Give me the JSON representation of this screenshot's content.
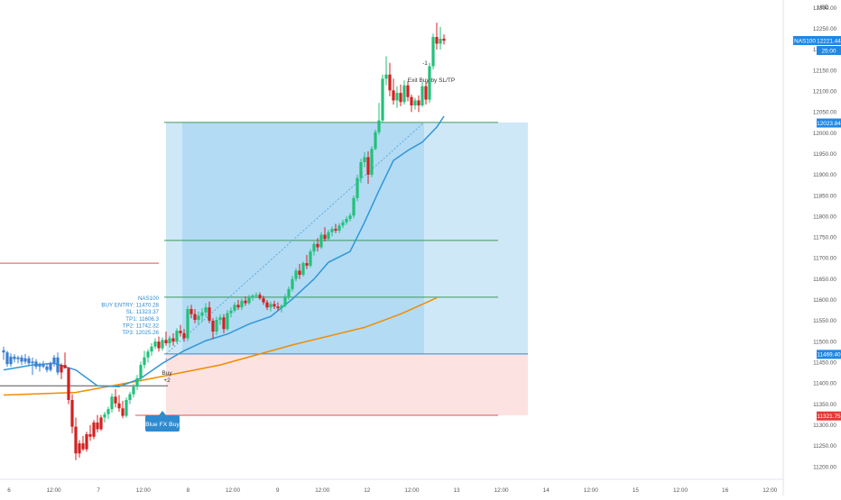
{
  "chart_data": {
    "type": "candlestick",
    "symbol": "NAS100",
    "currency": "USD",
    "ylim": [
      11170,
      12310
    ],
    "x_ticks": [
      "6",
      "12:00",
      "7",
      "12:00",
      "8",
      "12:00",
      "9",
      "12:00",
      "12",
      "12:00",
      "13",
      "12:00",
      "14",
      "12:00",
      "15",
      "12:00",
      "16",
      "12:00"
    ],
    "y_ticks": [
      "12300.00",
      "12250.00",
      "12200.00",
      "12150.00",
      "12100.00",
      "12050.00",
      "12000.00",
      "11950.00",
      "11900.00",
      "11850.00",
      "11800.00",
      "11750.00",
      "11700.00",
      "11650.00",
      "11600.00",
      "11550.00",
      "11500.00",
      "11450.00",
      "11400.00",
      "11350.00",
      "11300.00",
      "11250.00",
      "11200.00"
    ],
    "price_labels": {
      "symbol_tag": "NAS100",
      "last_price": "12221.44",
      "countdown": "25:00",
      "tp3_price": "12023.84",
      "entry_price": "11469.40",
      "sl_price": "11321.75"
    },
    "levels": {
      "entry": 11470.28,
      "sl": 11323.37,
      "tp1": 11606.3,
      "tp2": 11742.32,
      "tp3": 12025.26,
      "prior_resistance": 11688
    },
    "candles": [
      {
        "o": 11479,
        "h": 11488,
        "l": 11456,
        "c": 11474
      },
      {
        "o": 11474,
        "h": 11478,
        "l": 11440,
        "c": 11446
      },
      {
        "o": 11446,
        "h": 11472,
        "l": 11440,
        "c": 11464
      },
      {
        "o": 11464,
        "h": 11470,
        "l": 11450,
        "c": 11458
      },
      {
        "o": 11458,
        "h": 11466,
        "l": 11448,
        "c": 11462
      },
      {
        "o": 11462,
        "h": 11468,
        "l": 11444,
        "c": 11452
      },
      {
        "o": 11452,
        "h": 11470,
        "l": 11446,
        "c": 11460
      },
      {
        "o": 11460,
        "h": 11466,
        "l": 11444,
        "c": 11448
      },
      {
        "o": 11448,
        "h": 11462,
        "l": 11420,
        "c": 11452
      },
      {
        "o": 11452,
        "h": 11458,
        "l": 11434,
        "c": 11440
      },
      {
        "o": 11440,
        "h": 11450,
        "l": 11428,
        "c": 11444
      },
      {
        "o": 11444,
        "h": 11454,
        "l": 11436,
        "c": 11440
      },
      {
        "o": 11440,
        "h": 11446,
        "l": 11426,
        "c": 11432
      },
      {
        "o": 11432,
        "h": 11452,
        "l": 11428,
        "c": 11449
      },
      {
        "o": 11449,
        "h": 11468,
        "l": 11440,
        "c": 11462
      },
      {
        "o": 11462,
        "h": 11474,
        "l": 11420,
        "c": 11426
      },
      {
        "o": 11426,
        "h": 11448,
        "l": 11410,
        "c": 11444
      },
      {
        "o": 11444,
        "h": 11474,
        "l": 11436,
        "c": 11436
      },
      {
        "o": 11436,
        "h": 11438,
        "l": 11350,
        "c": 11360
      },
      {
        "o": 11360,
        "h": 11374,
        "l": 11280,
        "c": 11296
      },
      {
        "o": 11296,
        "h": 11318,
        "l": 11216,
        "c": 11232
      },
      {
        "o": 11232,
        "h": 11264,
        "l": 11222,
        "c": 11256
      },
      {
        "o": 11256,
        "h": 11274,
        "l": 11238,
        "c": 11242
      },
      {
        "o": 11242,
        "h": 11284,
        "l": 11236,
        "c": 11278
      },
      {
        "o": 11278,
        "h": 11300,
        "l": 11262,
        "c": 11272
      },
      {
        "o": 11272,
        "h": 11312,
        "l": 11266,
        "c": 11306
      },
      {
        "o": 11306,
        "h": 11324,
        "l": 11282,
        "c": 11290
      },
      {
        "o": 11290,
        "h": 11324,
        "l": 11286,
        "c": 11318
      },
      {
        "o": 11318,
        "h": 11332,
        "l": 11306,
        "c": 11326
      },
      {
        "o": 11326,
        "h": 11344,
        "l": 11314,
        "c": 11338
      },
      {
        "o": 11338,
        "h": 11376,
        "l": 11330,
        "c": 11368
      },
      {
        "o": 11368,
        "h": 11386,
        "l": 11342,
        "c": 11352
      },
      {
        "o": 11352,
        "h": 11372,
        "l": 11332,
        "c": 11340
      },
      {
        "o": 11340,
        "h": 11358,
        "l": 11316,
        "c": 11322
      },
      {
        "o": 11322,
        "h": 11366,
        "l": 11318,
        "c": 11360
      },
      {
        "o": 11360,
        "h": 11380,
        "l": 11350,
        "c": 11374
      },
      {
        "o": 11374,
        "h": 11398,
        "l": 11366,
        "c": 11392
      },
      {
        "o": 11392,
        "h": 11420,
        "l": 11384,
        "c": 11412
      },
      {
        "o": 11412,
        "h": 11452,
        "l": 11404,
        "c": 11444
      },
      {
        "o": 11444,
        "h": 11478,
        "l": 11436,
        "c": 11462
      },
      {
        "o": 11462,
        "h": 11482,
        "l": 11450,
        "c": 11476
      },
      {
        "o": 11476,
        "h": 11496,
        "l": 11466,
        "c": 11488
      },
      {
        "o": 11488,
        "h": 11508,
        "l": 11482,
        "c": 11500
      },
      {
        "o": 11500,
        "h": 11512,
        "l": 11476,
        "c": 11484
      },
      {
        "o": 11484,
        "h": 11510,
        "l": 11478,
        "c": 11504
      },
      {
        "o": 11504,
        "h": 11524,
        "l": 11490,
        "c": 11496
      },
      {
        "o": 11496,
        "h": 11514,
        "l": 11486,
        "c": 11508
      },
      {
        "o": 11508,
        "h": 11520,
        "l": 11490,
        "c": 11500
      },
      {
        "o": 11500,
        "h": 11532,
        "l": 11496,
        "c": 11526
      },
      {
        "o": 11526,
        "h": 11540,
        "l": 11512,
        "c": 11520
      },
      {
        "o": 11520,
        "h": 11530,
        "l": 11500,
        "c": 11508
      },
      {
        "o": 11508,
        "h": 11586,
        "l": 11502,
        "c": 11578
      },
      {
        "o": 11578,
        "h": 11588,
        "l": 11556,
        "c": 11566
      },
      {
        "o": 11566,
        "h": 11578,
        "l": 11544,
        "c": 11552
      },
      {
        "o": 11552,
        "h": 11572,
        "l": 11540,
        "c": 11562
      },
      {
        "o": 11562,
        "h": 11580,
        "l": 11548,
        "c": 11570
      },
      {
        "o": 11570,
        "h": 11592,
        "l": 11560,
        "c": 11582
      },
      {
        "o": 11582,
        "h": 11596,
        "l": 11544,
        "c": 11550
      },
      {
        "o": 11550,
        "h": 11556,
        "l": 11506,
        "c": 11524
      },
      {
        "o": 11524,
        "h": 11560,
        "l": 11516,
        "c": 11552
      },
      {
        "o": 11552,
        "h": 11566,
        "l": 11540,
        "c": 11558
      },
      {
        "o": 11558,
        "h": 11566,
        "l": 11520,
        "c": 11530
      },
      {
        "o": 11530,
        "h": 11576,
        "l": 11526,
        "c": 11568
      },
      {
        "o": 11568,
        "h": 11582,
        "l": 11558,
        "c": 11574
      },
      {
        "o": 11574,
        "h": 11594,
        "l": 11570,
        "c": 11588
      },
      {
        "o": 11588,
        "h": 11600,
        "l": 11576,
        "c": 11582
      },
      {
        "o": 11582,
        "h": 11604,
        "l": 11576,
        "c": 11598
      },
      {
        "o": 11598,
        "h": 11608,
        "l": 11586,
        "c": 11592
      },
      {
        "o": 11592,
        "h": 11612,
        "l": 11588,
        "c": 11606
      },
      {
        "o": 11606,
        "h": 11614,
        "l": 11598,
        "c": 11610
      },
      {
        "o": 11610,
        "h": 11618,
        "l": 11604,
        "c": 11612
      },
      {
        "o": 11612,
        "h": 11618,
        "l": 11600,
        "c": 11604
      },
      {
        "o": 11604,
        "h": 11610,
        "l": 11588,
        "c": 11594
      },
      {
        "o": 11594,
        "h": 11600,
        "l": 11576,
        "c": 11582
      },
      {
        "o": 11582,
        "h": 11596,
        "l": 11572,
        "c": 11590
      },
      {
        "o": 11590,
        "h": 11598,
        "l": 11578,
        "c": 11584
      },
      {
        "o": 11584,
        "h": 11594,
        "l": 11574,
        "c": 11580
      },
      {
        "o": 11580,
        "h": 11590,
        "l": 11570,
        "c": 11586
      },
      {
        "o": 11586,
        "h": 11614,
        "l": 11582,
        "c": 11608
      },
      {
        "o": 11608,
        "h": 11632,
        "l": 11600,
        "c": 11626
      },
      {
        "o": 11626,
        "h": 11658,
        "l": 11620,
        "c": 11650
      },
      {
        "o": 11650,
        "h": 11676,
        "l": 11644,
        "c": 11670
      },
      {
        "o": 11670,
        "h": 11686,
        "l": 11650,
        "c": 11660
      },
      {
        "o": 11660,
        "h": 11692,
        "l": 11656,
        "c": 11688
      },
      {
        "o": 11688,
        "h": 11708,
        "l": 11674,
        "c": 11682
      },
      {
        "o": 11682,
        "h": 11722,
        "l": 11678,
        "c": 11716
      },
      {
        "o": 11716,
        "h": 11740,
        "l": 11706,
        "c": 11734
      },
      {
        "o": 11734,
        "h": 11748,
        "l": 11716,
        "c": 11726
      },
      {
        "o": 11726,
        "h": 11762,
        "l": 11722,
        "c": 11756
      },
      {
        "o": 11756,
        "h": 11774,
        "l": 11740,
        "c": 11746
      },
      {
        "o": 11746,
        "h": 11768,
        "l": 11742,
        "c": 11762
      },
      {
        "o": 11762,
        "h": 11776,
        "l": 11752,
        "c": 11770
      },
      {
        "o": 11770,
        "h": 11782,
        "l": 11760,
        "c": 11766
      },
      {
        "o": 11766,
        "h": 11784,
        "l": 11760,
        "c": 11778
      },
      {
        "o": 11778,
        "h": 11792,
        "l": 11772,
        "c": 11786
      },
      {
        "o": 11786,
        "h": 11800,
        "l": 11780,
        "c": 11794
      },
      {
        "o": 11794,
        "h": 11808,
        "l": 11788,
        "c": 11802
      },
      {
        "o": 11802,
        "h": 11850,
        "l": 11796,
        "c": 11844
      },
      {
        "o": 11844,
        "h": 11900,
        "l": 11836,
        "c": 11892
      },
      {
        "o": 11892,
        "h": 11938,
        "l": 11880,
        "c": 11930
      },
      {
        "o": 11930,
        "h": 11954,
        "l": 11918,
        "c": 11942
      },
      {
        "o": 11942,
        "h": 11956,
        "l": 11878,
        "c": 11900
      },
      {
        "o": 11900,
        "h": 11968,
        "l": 11894,
        "c": 11962
      },
      {
        "o": 11962,
        "h": 12008,
        "l": 11958,
        "c": 12002
      },
      {
        "o": 12002,
        "h": 12072,
        "l": 11996,
        "c": 12030
      },
      {
        "o": 12030,
        "h": 12140,
        "l": 12024,
        "c": 12130
      },
      {
        "o": 12130,
        "h": 12184,
        "l": 12114,
        "c": 12140
      },
      {
        "o": 12140,
        "h": 12168,
        "l": 12088,
        "c": 12102
      },
      {
        "o": 12102,
        "h": 12130,
        "l": 12068,
        "c": 12078
      },
      {
        "o": 12078,
        "h": 12112,
        "l": 12060,
        "c": 12096
      },
      {
        "o": 12096,
        "h": 12116,
        "l": 12064,
        "c": 12074
      },
      {
        "o": 12074,
        "h": 12126,
        "l": 12068,
        "c": 12114
      },
      {
        "o": 12114,
        "h": 12124,
        "l": 12076,
        "c": 12086
      },
      {
        "o": 12086,
        "h": 12092,
        "l": 12050,
        "c": 12066
      },
      {
        "o": 12066,
        "h": 12084,
        "l": 12056,
        "c": 12078
      },
      {
        "o": 12078,
        "h": 12090,
        "l": 12050,
        "c": 12066
      },
      {
        "o": 12066,
        "h": 12122,
        "l": 12062,
        "c": 12112
      },
      {
        "o": 12112,
        "h": 12124,
        "l": 12068,
        "c": 12080
      },
      {
        "o": 12080,
        "h": 12168,
        "l": 12072,
        "c": 12160
      },
      {
        "o": 12160,
        "h": 12238,
        "l": 12152,
        "c": 12230
      },
      {
        "o": 12230,
        "h": 12264,
        "l": 12200,
        "c": 12214
      },
      {
        "o": 12214,
        "h": 12254,
        "l": 12200,
        "c": 12226
      },
      {
        "o": 12226,
        "h": 12236,
        "l": 12212,
        "c": 12221
      }
    ],
    "ma_slow": {
      "color": "#f08c00",
      "points": [
        [
          0,
          11372
        ],
        [
          20,
          11378
        ],
        [
          40,
          11410
        ],
        [
          60,
          11444
        ],
        [
          80,
          11492
        ],
        [
          100,
          11534
        ],
        [
          110,
          11566
        ],
        [
          120,
          11605
        ]
      ]
    },
    "ma_fast": {
      "color": "#2f97d8",
      "points": [
        [
          0,
          11432
        ],
        [
          8,
          11444
        ],
        [
          14,
          11448
        ],
        [
          20,
          11432
        ],
        [
          26,
          11394
        ],
        [
          32,
          11392
        ],
        [
          38,
          11412
        ],
        [
          44,
          11448
        ],
        [
          50,
          11478
        ],
        [
          56,
          11502
        ],
        [
          62,
          11518
        ],
        [
          68,
          11542
        ],
        [
          74,
          11560
        ],
        [
          80,
          11602
        ],
        [
          86,
          11650
        ],
        [
          90,
          11690
        ],
        [
          96,
          11716
        ],
        [
          100,
          11786
        ],
        [
          104,
          11862
        ],
        [
          108,
          11934
        ],
        [
          112,
          11958
        ],
        [
          116,
          11978
        ],
        [
          120,
          12014
        ],
        [
          122,
          12040
        ]
      ]
    },
    "annotations": {
      "info_lines": [
        "NAS100",
        "BUY ENTRY: 11470.28",
        "SL: 11323.37",
        "TP1: 11606.3",
        "TP2: 11742.32",
        "TP3: 12025.26"
      ],
      "buy_label": "Buy",
      "buy_qty": "+2",
      "exit_label": "Exit Buy by SL/TP",
      "exit_qty": "-1",
      "signal_label": "Blue FX Buy"
    },
    "colors": {
      "bull": "#22c07a",
      "bear": "#d32020",
      "neutral": "#3a7fd0",
      "profit_zone": "#cfe8f7",
      "profit_zone_dark": "#a9d7f3",
      "loss_zone": "#fde2e2",
      "level_green": "#3d9a5a",
      "level_red": "#e05050",
      "entry_line": "#2f8bd0",
      "signal": "#2f8bd0"
    }
  }
}
